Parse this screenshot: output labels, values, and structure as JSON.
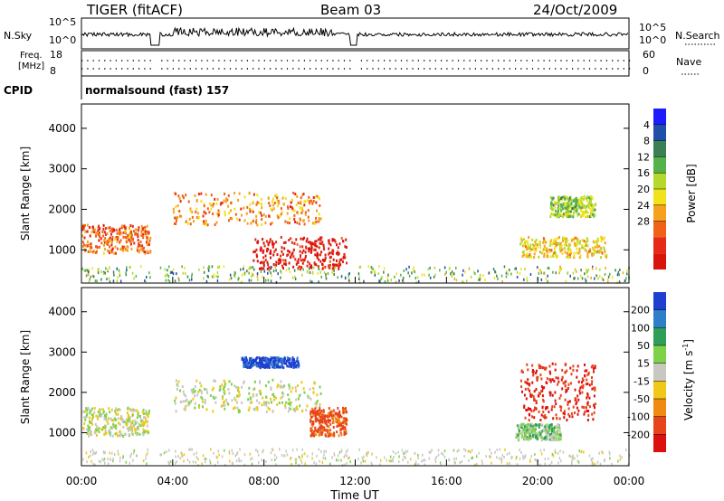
{
  "header": {
    "title": "TIGER (fitACF)",
    "beam": "Beam 03",
    "date": "24/Oct/2009"
  },
  "panels": {
    "nsky": {
      "left_label": "N.Sky",
      "right_label": "N.Search",
      "left_ticks": [
        "10^5",
        "10^0"
      ],
      "right_ticks": [
        "10^5",
        "10^0"
      ]
    },
    "freq": {
      "left_label_1": "Freq.",
      "left_label_2": "[MHz]",
      "right_label": "Nave",
      "left_ticks": [
        "18",
        "8"
      ],
      "right_ticks": [
        "60",
        "0"
      ]
    },
    "cpid": {
      "label": "CPID",
      "text": "normalsound (fast) 157"
    }
  },
  "chart_data": [
    {
      "type": "heatmap",
      "title": "",
      "xlabel": "Time UT",
      "ylabel": "Slant Range [km]",
      "xlim": [
        "00:00",
        "24:00"
      ],
      "ylim": [
        180,
        4600
      ],
      "x_ticks": [
        "00:00",
        "04:00",
        "08:00",
        "12:00",
        "16:00",
        "20:00",
        "00:00"
      ],
      "y_ticks": [
        1000,
        2000,
        3000,
        4000
      ],
      "colorbar": {
        "label": "Power [dB]",
        "ticks": [
          "4",
          "8",
          "12",
          "16",
          "20",
          "24",
          "28"
        ],
        "colors": [
          "#1c1cff",
          "#1f4fa8",
          "#3c7f55",
          "#55b24a",
          "#b4d92c",
          "#f2e21a",
          "#f7a01c",
          "#ef6218",
          "#e52a18",
          "#d9140c"
        ]
      },
      "data_gaps_ut_hours": [
        [
          3.0,
          3.4
        ],
        [
          11.8,
          12.1
        ]
      ],
      "features": [
        {
          "t_start": 0.0,
          "t_end": 3.0,
          "range_min": 900,
          "range_max": 1600,
          "power_db": 24
        },
        {
          "t_start": 4.0,
          "t_end": 10.5,
          "range_min": 1600,
          "range_max": 2400,
          "power_db": 22
        },
        {
          "t_start": 7.5,
          "t_end": 11.6,
          "range_min": 500,
          "range_max": 1300,
          "power_db": 30
        },
        {
          "t_start": 19.2,
          "t_end": 23.0,
          "range_min": 800,
          "range_max": 1300,
          "power_db": 18
        },
        {
          "t_start": 20.5,
          "t_end": 22.5,
          "range_min": 1800,
          "range_max": 2300,
          "power_db": 14
        }
      ]
    },
    {
      "type": "heatmap",
      "title": "",
      "xlabel": "Time UT",
      "ylabel": "Slant Range [km]",
      "xlim": [
        "00:00",
        "24:00"
      ],
      "ylim": [
        180,
        4600
      ],
      "x_ticks": [
        "00:00",
        "04:00",
        "08:00",
        "12:00",
        "16:00",
        "20:00",
        "00:00"
      ],
      "y_ticks": [
        1000,
        2000,
        3000,
        4000
      ],
      "colorbar": {
        "label": "Velocity [m s^-1]",
        "ticks": [
          "200",
          "100",
          "50",
          "15",
          "-15",
          "-50",
          "-100",
          "-200"
        ],
        "colors": [
          "#1f3fd0",
          "#2f7fc8",
          "#2f9e5a",
          "#7ed24a",
          "#c8c8c0",
          "#f0c81a",
          "#f08a12",
          "#e8441a",
          "#dd1010"
        ]
      },
      "data_gaps_ut_hours": [
        [
          3.0,
          3.4
        ],
        [
          11.8,
          12.1
        ]
      ],
      "features": [
        {
          "t_start": 0.0,
          "t_end": 3.0,
          "range_min": 900,
          "range_max": 1600,
          "velocity_ms": 0
        },
        {
          "t_start": 4.0,
          "t_end": 10.5,
          "range_min": 1500,
          "range_max": 2300,
          "velocity_ms": 0
        },
        {
          "t_start": 7.0,
          "t_end": 9.5,
          "range_min": 2600,
          "range_max": 2850,
          "velocity_ms": 220
        },
        {
          "t_start": 10.0,
          "t_end": 11.6,
          "range_min": 900,
          "range_max": 1600,
          "velocity_ms": -120
        },
        {
          "t_start": 19.2,
          "t_end": 22.5,
          "range_min": 1300,
          "range_max": 2700,
          "velocity_ms": -200
        },
        {
          "t_start": 19.0,
          "t_end": 21.0,
          "range_min": 800,
          "range_max": 1200,
          "velocity_ms": 30
        }
      ]
    }
  ]
}
